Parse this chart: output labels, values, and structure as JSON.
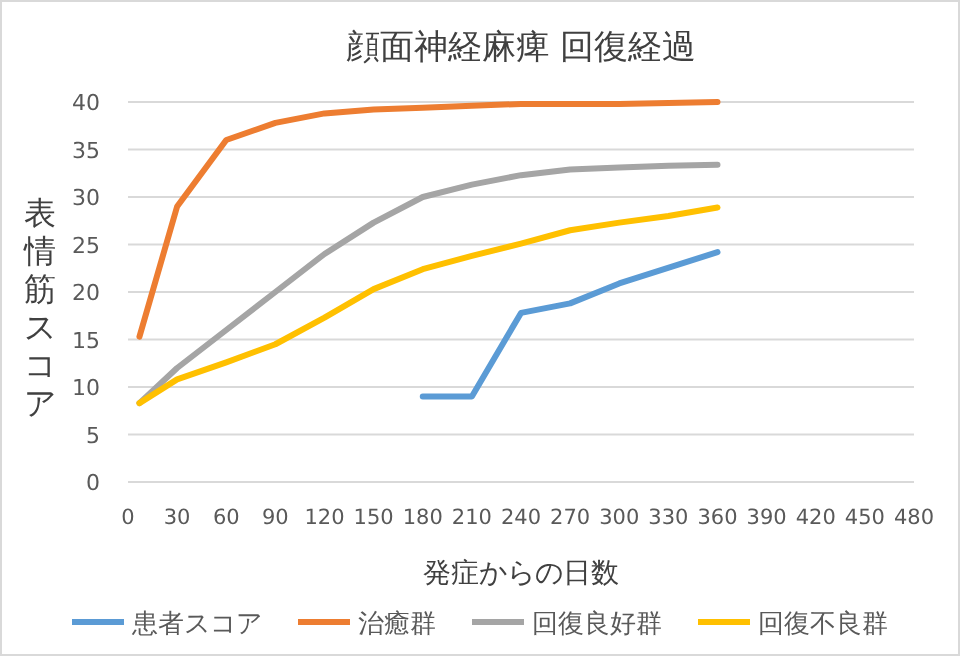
{
  "chart_data": {
    "type": "line",
    "title": "顔面神経麻痺 回復経過",
    "xlabel": "発症からの日数",
    "ylabel": "表情筋スコア",
    "xlim": [
      0,
      480
    ],
    "xticks": [
      0,
      30,
      60,
      90,
      120,
      150,
      180,
      210,
      240,
      270,
      300,
      330,
      360,
      390,
      420,
      450,
      480
    ],
    "ylim": [
      0,
      40
    ],
    "yticks": [
      0,
      5,
      10,
      15,
      20,
      25,
      30,
      35,
      40
    ],
    "grid": "y",
    "legend": "bottom",
    "series": [
      {
        "name": "患者スコア",
        "color": "#5b9bd5",
        "x": [
          180,
          210,
          240,
          270,
          300,
          360
        ],
        "values": [
          9,
          9,
          17.8,
          18.8,
          20.9,
          24.2
        ]
      },
      {
        "name": "治癒群",
        "color": "#ed7d31",
        "x": [
          7,
          30,
          60,
          90,
          120,
          150,
          180,
          210,
          240,
          270,
          300,
          330,
          360
        ],
        "values": [
          15.3,
          29,
          36,
          37.8,
          38.8,
          39.2,
          39.4,
          39.6,
          39.8,
          39.8,
          39.8,
          39.9,
          40
        ]
      },
      {
        "name": "回復良好群",
        "color": "#a5a5a5",
        "x": [
          7,
          30,
          60,
          90,
          120,
          150,
          180,
          210,
          240,
          270,
          300,
          330,
          360
        ],
        "values": [
          8.3,
          12,
          16,
          20,
          24,
          27.3,
          30,
          31.3,
          32.3,
          32.9,
          33.1,
          33.3,
          33.4
        ]
      },
      {
        "name": "回復不良群",
        "color": "#ffc000",
        "x": [
          7,
          30,
          60,
          90,
          120,
          150,
          180,
          210,
          240,
          270,
          300,
          330,
          360
        ],
        "values": [
          8.3,
          10.8,
          12.6,
          14.5,
          17.3,
          20.3,
          22.4,
          23.8,
          25.1,
          26.5,
          27.3,
          28,
          28.9
        ]
      }
    ]
  }
}
